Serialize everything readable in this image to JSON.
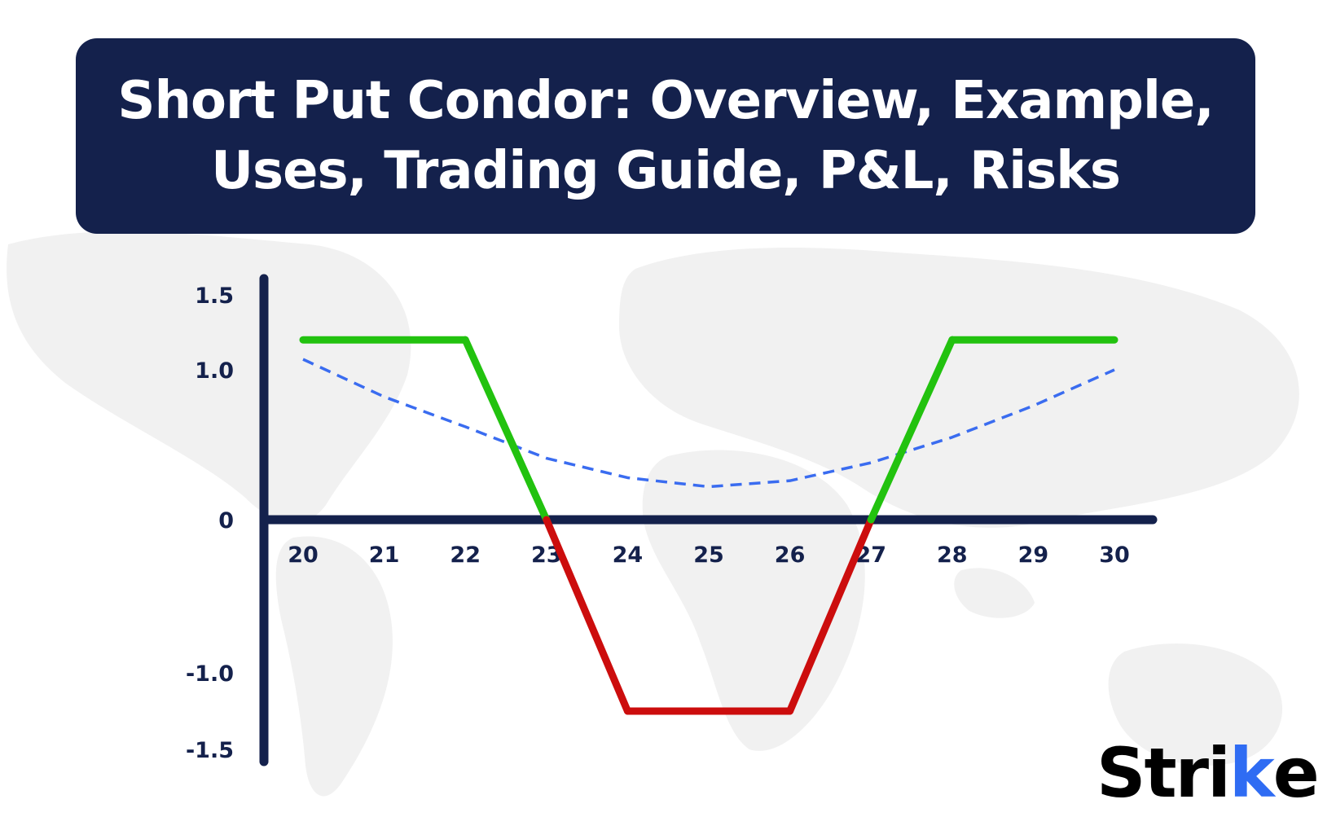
{
  "title": {
    "line1": "Short Put Condor: Overview, Example,",
    "line2": "Uses, Trading Guide, P&L, Risks"
  },
  "brand": {
    "main": "Stri",
    "accent_letter": "k",
    "tail": "e",
    "accent_color": "#2f6cf3"
  },
  "colors": {
    "banner": "#14214c",
    "axis": "#14214c",
    "profit": "#22c20f",
    "loss": "#cc0d0d",
    "curve": "#3a6cf0"
  },
  "chart_data": {
    "type": "line",
    "xlim": [
      20,
      30
    ],
    "ylim": [
      -1.5,
      1.5
    ],
    "x_ticks": [
      "20",
      "21",
      "22",
      "23",
      "24",
      "25",
      "26",
      "27",
      "28",
      "29",
      "30"
    ],
    "y_ticks": [
      {
        "value": 1.5,
        "label": "1.5"
      },
      {
        "value": 1.0,
        "label": "1.0"
      },
      {
        "value": 0,
        "label": "0"
      },
      {
        "value": -1.0,
        "label": "-1.0"
      },
      {
        "value": -1.5,
        "label": "-1.5"
      }
    ],
    "series": [
      {
        "style": "solid",
        "points": [
          [
            20,
            1.2
          ],
          [
            22,
            1.2
          ],
          [
            23,
            0
          ],
          [
            24,
            -1.25
          ],
          [
            26,
            -1.25
          ],
          [
            27,
            0
          ],
          [
            28,
            1.2
          ],
          [
            30,
            1.2
          ]
        ]
      },
      {
        "style": "dashed",
        "points": [
          [
            20,
            1.07
          ],
          [
            21,
            0.82
          ],
          [
            22,
            0.62
          ],
          [
            23,
            0.41
          ],
          [
            24,
            0.28
          ],
          [
            25,
            0.22
          ],
          [
            26,
            0.26
          ],
          [
            27,
            0.38
          ],
          [
            28,
            0.55
          ],
          [
            29,
            0.76
          ],
          [
            30,
            1.0
          ]
        ]
      }
    ]
  }
}
